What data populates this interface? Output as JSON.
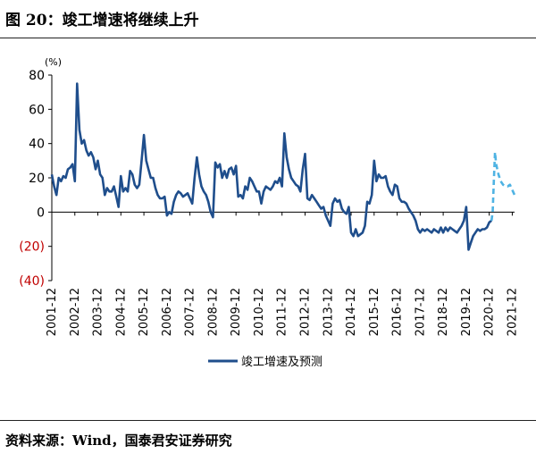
{
  "title": "图 20：竣工增速将继续上升",
  "source": "资料来源：Wind，国泰君安证券研究",
  "chart_data": {
    "type": "line",
    "unit_label": "(%)",
    "ylim": [
      -40,
      80
    ],
    "yticks": [
      {
        "value": 80,
        "label": "80"
      },
      {
        "value": 60,
        "label": "60"
      },
      {
        "value": 40,
        "label": "40"
      },
      {
        "value": 20,
        "label": "20"
      },
      {
        "value": 0,
        "label": "0"
      },
      {
        "value": -20,
        "label": "(20)"
      },
      {
        "value": -40,
        "label": "(40)"
      }
    ],
    "xticks": [
      "2001-12",
      "2002-12",
      "2003-12",
      "2004-12",
      "2005-12",
      "2006-12",
      "2007-12",
      "2008-12",
      "2009-12",
      "2010-12",
      "2011-12",
      "2012-12",
      "2013-12",
      "2014-12",
      "2015-12",
      "2016-12",
      "2017-12",
      "2018-12",
      "2019-12",
      "2020-12",
      "2021-12"
    ],
    "colors": {
      "actual": "#1f4e8c",
      "forecast": "#4fb3e3",
      "negative_label": "#c00000"
    },
    "legend": {
      "label": "竣工增速及预测",
      "position": "bottom"
    },
    "series": [
      {
        "key": "actual",
        "points": [
          [
            2001.9,
            22
          ],
          [
            2002.0,
            15
          ],
          [
            2002.1,
            10
          ],
          [
            2002.2,
            20
          ],
          [
            2002.3,
            18
          ],
          [
            2002.4,
            21
          ],
          [
            2002.5,
            20
          ],
          [
            2002.6,
            25
          ],
          [
            2002.7,
            26
          ],
          [
            2002.8,
            28
          ],
          [
            2002.9,
            18
          ],
          [
            2003.0,
            75
          ],
          [
            2003.1,
            48
          ],
          [
            2003.2,
            40
          ],
          [
            2003.3,
            42
          ],
          [
            2003.4,
            36
          ],
          [
            2003.5,
            33
          ],
          [
            2003.6,
            35
          ],
          [
            2003.7,
            32
          ],
          [
            2003.8,
            25
          ],
          [
            2003.9,
            30
          ],
          [
            2004.0,
            22
          ],
          [
            2004.1,
            20
          ],
          [
            2004.2,
            10
          ],
          [
            2004.3,
            14
          ],
          [
            2004.4,
            12
          ],
          [
            2004.5,
            12
          ],
          [
            2004.6,
            15
          ],
          [
            2004.7,
            9
          ],
          [
            2004.8,
            3
          ],
          [
            2004.9,
            21
          ],
          [
            2005.0,
            12
          ],
          [
            2005.1,
            14
          ],
          [
            2005.2,
            12
          ],
          [
            2005.3,
            24
          ],
          [
            2005.4,
            22
          ],
          [
            2005.5,
            16
          ],
          [
            2005.6,
            14
          ],
          [
            2005.7,
            16
          ],
          [
            2005.8,
            30
          ],
          [
            2005.9,
            45
          ],
          [
            2006.0,
            30
          ],
          [
            2006.1,
            25
          ],
          [
            2006.2,
            20
          ],
          [
            2006.3,
            20
          ],
          [
            2006.4,
            14
          ],
          [
            2006.5,
            10
          ],
          [
            2006.6,
            8
          ],
          [
            2006.7,
            8
          ],
          [
            2006.8,
            9
          ],
          [
            2006.9,
            -2
          ],
          [
            2007.0,
            0
          ],
          [
            2007.1,
            -1
          ],
          [
            2007.2,
            6
          ],
          [
            2007.3,
            10
          ],
          [
            2007.4,
            12
          ],
          [
            2007.5,
            11
          ],
          [
            2007.6,
            9
          ],
          [
            2007.7,
            10
          ],
          [
            2007.8,
            11
          ],
          [
            2007.9,
            8
          ],
          [
            2008.0,
            5
          ],
          [
            2008.1,
            20
          ],
          [
            2008.2,
            32
          ],
          [
            2008.3,
            22
          ],
          [
            2008.4,
            15
          ],
          [
            2008.5,
            12
          ],
          [
            2008.6,
            10
          ],
          [
            2008.7,
            6
          ],
          [
            2008.8,
            0
          ],
          [
            2008.9,
            -3
          ],
          [
            2009.0,
            29
          ],
          [
            2009.1,
            26
          ],
          [
            2009.2,
            28
          ],
          [
            2009.3,
            20
          ],
          [
            2009.4,
            24
          ],
          [
            2009.5,
            20
          ],
          [
            2009.6,
            25
          ],
          [
            2009.7,
            26
          ],
          [
            2009.8,
            22
          ],
          [
            2009.9,
            27
          ],
          [
            2010.0,
            9
          ],
          [
            2010.1,
            10
          ],
          [
            2010.2,
            8
          ],
          [
            2010.3,
            15
          ],
          [
            2010.4,
            13
          ],
          [
            2010.5,
            20
          ],
          [
            2010.6,
            18
          ],
          [
            2010.7,
            15
          ],
          [
            2010.8,
            12
          ],
          [
            2010.9,
            12
          ],
          [
            2011.0,
            5
          ],
          [
            2011.1,
            12
          ],
          [
            2011.2,
            15
          ],
          [
            2011.3,
            14
          ],
          [
            2011.4,
            13
          ],
          [
            2011.5,
            15
          ],
          [
            2011.6,
            18
          ],
          [
            2011.7,
            17
          ],
          [
            2011.8,
            20
          ],
          [
            2011.9,
            15
          ],
          [
            2012.0,
            46
          ],
          [
            2012.1,
            32
          ],
          [
            2012.2,
            25
          ],
          [
            2012.3,
            20
          ],
          [
            2012.4,
            18
          ],
          [
            2012.5,
            16
          ],
          [
            2012.6,
            15
          ],
          [
            2012.7,
            12
          ],
          [
            2012.8,
            25
          ],
          [
            2012.9,
            34
          ],
          [
            2013.0,
            8
          ],
          [
            2013.1,
            7
          ],
          [
            2013.2,
            10
          ],
          [
            2013.3,
            8
          ],
          [
            2013.4,
            6
          ],
          [
            2013.5,
            4
          ],
          [
            2013.6,
            2
          ],
          [
            2013.7,
            3
          ],
          [
            2013.8,
            -2
          ],
          [
            2013.9,
            -5
          ],
          [
            2014.0,
            -8
          ],
          [
            2014.1,
            5
          ],
          [
            2014.2,
            8
          ],
          [
            2014.3,
            6
          ],
          [
            2014.4,
            7
          ],
          [
            2014.5,
            2
          ],
          [
            2014.6,
            0
          ],
          [
            2014.7,
            -1
          ],
          [
            2014.8,
            3
          ],
          [
            2014.9,
            -12
          ],
          [
            2015.0,
            -14
          ],
          [
            2015.1,
            -10
          ],
          [
            2015.2,
            -14
          ],
          [
            2015.3,
            -13
          ],
          [
            2015.4,
            -12
          ],
          [
            2015.5,
            -8
          ],
          [
            2015.6,
            6
          ],
          [
            2015.7,
            5
          ],
          [
            2015.8,
            10
          ],
          [
            2015.9,
            30
          ],
          [
            2016.0,
            18
          ],
          [
            2016.1,
            22
          ],
          [
            2016.2,
            20
          ],
          [
            2016.3,
            20
          ],
          [
            2016.4,
            21
          ],
          [
            2016.5,
            15
          ],
          [
            2016.6,
            12
          ],
          [
            2016.7,
            10
          ],
          [
            2016.8,
            16
          ],
          [
            2016.9,
            15
          ],
          [
            2017.0,
            8
          ],
          [
            2017.1,
            6
          ],
          [
            2017.2,
            6
          ],
          [
            2017.3,
            5
          ],
          [
            2017.4,
            2
          ],
          [
            2017.5,
            0
          ],
          [
            2017.6,
            -2
          ],
          [
            2017.7,
            -5
          ],
          [
            2017.8,
            -10
          ],
          [
            2017.9,
            -12
          ],
          [
            2018.0,
            -10
          ],
          [
            2018.1,
            -11
          ],
          [
            2018.2,
            -10
          ],
          [
            2018.3,
            -11
          ],
          [
            2018.4,
            -12
          ],
          [
            2018.5,
            -10
          ],
          [
            2018.6,
            -11
          ],
          [
            2018.7,
            -12
          ],
          [
            2018.8,
            -9
          ],
          [
            2018.9,
            -12
          ],
          [
            2019.0,
            -9
          ],
          [
            2019.1,
            -11
          ],
          [
            2019.2,
            -9
          ],
          [
            2019.3,
            -10
          ],
          [
            2019.4,
            -11
          ],
          [
            2019.5,
            -12
          ],
          [
            2019.6,
            -10
          ],
          [
            2019.7,
            -8
          ],
          [
            2019.8,
            -5
          ],
          [
            2019.9,
            3
          ],
          [
            2020.0,
            -22
          ],
          [
            2020.1,
            -18
          ],
          [
            2020.2,
            -14
          ],
          [
            2020.3,
            -12
          ],
          [
            2020.4,
            -10
          ],
          [
            2020.5,
            -11
          ],
          [
            2020.6,
            -10
          ],
          [
            2020.7,
            -10
          ],
          [
            2020.8,
            -9
          ],
          [
            2020.9,
            -6
          ],
          [
            2021.0,
            -5
          ]
        ]
      },
      {
        "key": "forecast",
        "points": [
          [
            2021.0,
            -5
          ],
          [
            2021.05,
            0
          ],
          [
            2021.1,
            18
          ],
          [
            2021.15,
            35
          ],
          [
            2021.2,
            28
          ],
          [
            2021.3,
            22
          ],
          [
            2021.4,
            18
          ],
          [
            2021.5,
            16
          ],
          [
            2021.6,
            15
          ],
          [
            2021.7,
            15
          ],
          [
            2021.8,
            16
          ],
          [
            2021.9,
            13
          ],
          [
            2022.0,
            10
          ]
        ]
      }
    ]
  }
}
